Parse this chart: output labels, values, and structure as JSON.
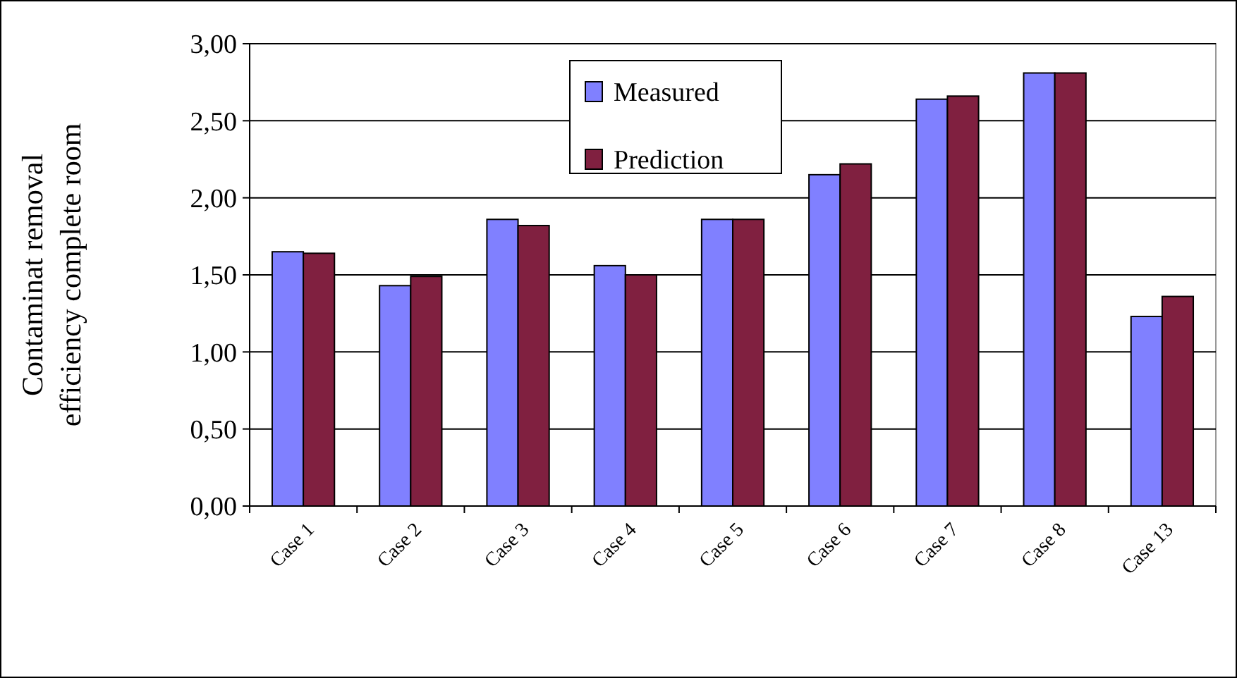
{
  "chart_data": {
    "type": "bar",
    "ylabel": "Contaminat removal efficiency complete room",
    "categories": [
      "Case 1",
      "Case 2",
      "Case 3",
      "Case 4",
      "Case 5",
      "Case 6",
      "Case 7",
      "Case 8",
      "Case 13"
    ],
    "series": [
      {
        "name": "Measured",
        "color": "#8080ff",
        "values": [
          1.65,
          1.43,
          1.86,
          1.56,
          1.86,
          2.15,
          2.64,
          2.81,
          1.23
        ]
      },
      {
        "name": "Prediction",
        "color": "#802040",
        "values": [
          1.64,
          1.49,
          1.82,
          1.5,
          1.86,
          2.22,
          2.66,
          2.81,
          1.36
        ]
      }
    ],
    "ylim": [
      0,
      3
    ],
    "yticks": [
      {
        "value": 0,
        "label": "0,00"
      },
      {
        "value": 0.5,
        "label": "0,50"
      },
      {
        "value": 1,
        "label": "1,00"
      },
      {
        "value": 1.5,
        "label": "1,50"
      },
      {
        "value": 2,
        "label": "2,00"
      },
      {
        "value": 2.5,
        "label": "2,50"
      },
      {
        "value": 3,
        "label": "3,00"
      }
    ],
    "grid": "y",
    "legend": "top"
  }
}
